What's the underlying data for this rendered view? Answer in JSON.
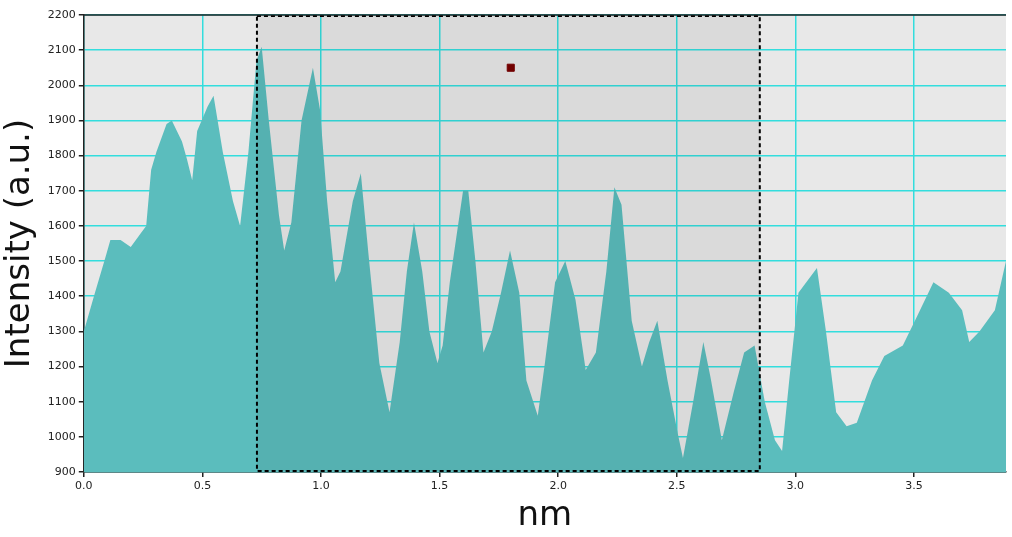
{
  "chart_data": {
    "type": "area",
    "xlabel": "nm",
    "ylabel": "Intensity (a.u.)",
    "xlim": [
      0,
      3.888
    ],
    "ylim": [
      900,
      2200
    ],
    "xticks": [
      {
        "value": 0,
        "label": "0.0"
      },
      {
        "value": 0.5,
        "label": "0.5"
      },
      {
        "value": 1,
        "label": "1.0"
      },
      {
        "value": 1.5,
        "label": "1.5"
      },
      {
        "value": 2,
        "label": "2.0"
      },
      {
        "value": 2.5,
        "label": "2.5"
      },
      {
        "value": 3,
        "label": "3.0"
      },
      {
        "value": 3.5,
        "label": "3.5"
      }
    ],
    "yticks": [
      900,
      1000,
      1100,
      1200,
      1300,
      1400,
      1500,
      1600,
      1700,
      1800,
      1900,
      2000,
      2100,
      2200
    ],
    "grid": true,
    "legend": false,
    "bands": [
      {
        "axis": "x",
        "from": 0.73,
        "to": 2.85,
        "color": "#000000"
      }
    ],
    "series": [
      {
        "color": "#5bbdbd",
        "x": [
          0,
          0.047,
          0.091,
          0.112,
          0.155,
          0.198,
          0.241,
          0.263,
          0.284,
          0.306,
          0.349,
          0.371,
          0.414,
          0.435,
          0.457,
          0.478,
          0.522,
          0.547,
          0.586,
          0.629,
          0.659,
          0.694,
          0.728,
          0.75,
          0.78,
          0.823,
          0.845,
          0.875,
          0.918,
          0.966,
          0.996,
          1.026,
          1.06,
          1.082,
          1.134,
          1.168,
          1.203,
          1.246,
          1.289,
          1.332,
          1.362,
          1.392,
          1.427,
          1.457,
          1.491,
          1.513,
          1.543,
          1.599,
          1.621,
          1.651,
          1.685,
          1.72,
          1.759,
          1.797,
          1.836,
          1.866,
          1.914,
          1.944,
          1.987,
          2.03,
          2.073,
          2.116,
          2.159,
          2.203,
          2.237,
          2.267,
          2.31,
          2.353,
          2.384,
          2.418,
          2.461,
          2.504,
          2.526,
          2.569,
          2.612,
          2.642,
          2.69,
          2.741,
          2.784,
          2.828,
          2.871,
          2.914,
          2.944,
          2.974,
          3.013,
          3.091,
          3.129,
          3.172,
          3.216,
          3.259,
          3.323,
          3.375,
          3.453,
          3.504,
          3.582,
          3.647,
          3.703,
          3.733,
          3.776,
          3.841,
          3.888
        ],
        "values": [
          1300,
          1410,
          1510,
          1560,
          1560,
          1540,
          1580,
          1600,
          1760,
          1810,
          1890,
          1900,
          1840,
          1790,
          1730,
          1870,
          1940,
          1970,
          1810,
          1670,
          1600,
          1810,
          2070,
          2110,
          1900,
          1630,
          1530,
          1610,
          1900,
          2050,
          1930,
          1670,
          1440,
          1470,
          1670,
          1750,
          1500,
          1210,
          1070,
          1270,
          1470,
          1610,
          1470,
          1300,
          1210,
          1260,
          1440,
          1700,
          1700,
          1500,
          1240,
          1300,
          1410,
          1530,
          1410,
          1160,
          1060,
          1210,
          1440,
          1500,
          1390,
          1190,
          1240,
          1470,
          1710,
          1660,
          1330,
          1200,
          1270,
          1330,
          1160,
          1010,
          940,
          1100,
          1270,
          1170,
          990,
          1130,
          1240,
          1260,
          1100,
          990,
          960,
          1160,
          1410,
          1480,
          1300,
          1070,
          1030,
          1040,
          1160,
          1230,
          1260,
          1330,
          1440,
          1410,
          1360,
          1270,
          1300,
          1360,
          1500
        ]
      },
      {
        "type": "scatter",
        "color": "#7a0000",
        "marker": "square",
        "x": [
          1.8
        ],
        "values": [
          2050
        ]
      }
    ]
  }
}
